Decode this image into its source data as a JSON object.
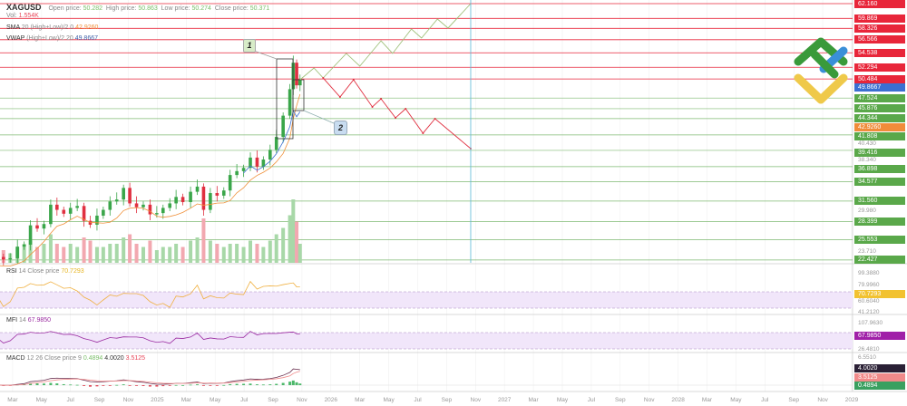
{
  "header": {
    "symbol": "XAGUSD",
    "open_label": "Open price:",
    "open": "50.282",
    "high_label": "High price:",
    "high": "50.863",
    "low_label": "Low price:",
    "low": "50.274",
    "close_label": "Close price:",
    "close": "50.371",
    "vol_label": "Vol:",
    "vol": "1.554K"
  },
  "indicators": {
    "sma": {
      "name": "SMA",
      "params": "20 (High+Low)/2 0",
      "value": "42.9260",
      "color": "#f0903a"
    },
    "vwap": {
      "name": "VWAP",
      "params": "(High+Low)/2 20",
      "value": "49.8667",
      "color": "#3b6fd1"
    },
    "rsi": {
      "name": "RSI",
      "params": "14 Close price",
      "value": "70.7293",
      "color": "#f0b040",
      "levels": [
        70,
        30
      ]
    },
    "mfi": {
      "name": "MFI",
      "params": "14",
      "value": "67.9850",
      "color": "#9a2aa0",
      "levels": [
        80,
        20
      ]
    },
    "macd": {
      "name": "MACD",
      "params": "12 26 Close price 9",
      "hist": "0.4894",
      "macd": "4.0020",
      "signal": "3.5125"
    }
  },
  "annotations": [
    {
      "label": "1"
    },
    {
      "label": "2"
    }
  ],
  "colors": {
    "resistance": "#e8263a",
    "support": "#5fa84f",
    "bull": "#3aa64a",
    "bear": "#e03040",
    "forecast_up": "#9fc07a",
    "forecast_down": "#e03040",
    "vline": "#5bb8d8"
  },
  "chart_data": {
    "type": "candlestick",
    "title": "",
    "x_ticks": [
      {
        "date": "2024-03-01",
        "label": "Mar"
      },
      {
        "date": "2024-05-01",
        "label": "May"
      },
      {
        "date": "2024-07-01",
        "label": "Jul"
      },
      {
        "date": "2024-09-01",
        "label": "Sep"
      },
      {
        "date": "2024-11-01",
        "label": "Nov"
      },
      {
        "date": "2025-01-01",
        "label": "2025"
      },
      {
        "date": "2025-03-01",
        "label": "Mar"
      },
      {
        "date": "2025-05-01",
        "label": "May"
      },
      {
        "date": "2025-07-01",
        "label": "Jul"
      },
      {
        "date": "2025-09-01",
        "label": "Sep"
      },
      {
        "date": "2025-11-01",
        "label": "Nov"
      },
      {
        "date": "2026-01-01",
        "label": "2026"
      },
      {
        "date": "2026-03-01",
        "label": "Mar"
      },
      {
        "date": "2026-05-01",
        "label": "May"
      },
      {
        "date": "2026-07-01",
        "label": "Jul"
      },
      {
        "date": "2026-09-01",
        "label": "Sep"
      },
      {
        "date": "2026-11-01",
        "label": "Nov"
      },
      {
        "date": "2027-01-01",
        "label": "2027"
      },
      {
        "date": "2027-03-01",
        "label": "Mar"
      },
      {
        "date": "2027-05-01",
        "label": "May"
      },
      {
        "date": "2027-07-01",
        "label": "Jul"
      },
      {
        "date": "2027-09-01",
        "label": "Sep"
      },
      {
        "date": "2027-11-01",
        "label": "Nov"
      },
      {
        "date": "2028-01-01",
        "label": "2028"
      },
      {
        "date": "2028-03-01",
        "label": "Mar"
      },
      {
        "date": "2028-05-01",
        "label": "May"
      },
      {
        "date": "2028-07-01",
        "label": "Jul"
      },
      {
        "date": "2028-09-01",
        "label": "Sep"
      },
      {
        "date": "2028-11-01",
        "label": "Nov"
      },
      {
        "date": "2029-01-01",
        "label": "2029"
      }
    ],
    "resistance_levels": [
      "62.160",
      "59.869",
      "58.326",
      "56.566",
      "54.538",
      "52.294",
      "50.484"
    ],
    "support_levels": [
      "47.524",
      "45.876",
      "44.344",
      "41.808",
      "39.416",
      "36.898",
      "34.577",
      "31.560",
      "28.399",
      "25.553",
      "22.427"
    ],
    "price_ticks": [
      "40.430",
      "38.340",
      "29.980",
      "23.710"
    ],
    "rsi_ticks": [
      "99.3880",
      "79.9960",
      "60.6040",
      "41.2120"
    ],
    "mfi_ticks": [
      "107.9630",
      "26.4810"
    ],
    "macd_ticks": [
      "6.5510"
    ],
    "closes": [
      [
        "2024-01-01",
        22.8
      ],
      [
        "2024-01-15",
        22.6
      ],
      [
        "2024-01-29",
        22.9
      ],
      [
        "2024-02-12",
        22.5
      ],
      [
        "2024-02-26",
        22.7
      ],
      [
        "2024-03-11",
        24.5
      ],
      [
        "2024-03-25",
        24.8
      ],
      [
        "2024-04-08",
        27.8
      ],
      [
        "2024-04-22",
        27.3
      ],
      [
        "2024-05-06",
        28.0
      ],
      [
        "2024-05-20",
        31.0
      ],
      [
        "2024-06-03",
        30.2
      ],
      [
        "2024-06-17",
        29.6
      ],
      [
        "2024-07-01",
        30.5
      ],
      [
        "2024-07-15",
        30.8
      ],
      [
        "2024-07-29",
        28.5
      ],
      [
        "2024-08-12",
        27.9
      ],
      [
        "2024-08-26",
        29.3
      ],
      [
        "2024-09-09",
        30.2
      ],
      [
        "2024-09-23",
        31.5
      ],
      [
        "2024-10-07",
        31.8
      ],
      [
        "2024-10-21",
        33.6
      ],
      [
        "2024-11-04",
        31.2
      ],
      [
        "2024-11-18",
        30.6
      ],
      [
        "2024-12-02",
        31.0
      ],
      [
        "2024-12-16",
        29.5
      ],
      [
        "2024-12-30",
        29.7
      ],
      [
        "2025-01-13",
        30.5
      ],
      [
        "2025-01-27",
        31.2
      ],
      [
        "2025-02-10",
        32.2
      ],
      [
        "2025-02-24",
        31.4
      ],
      [
        "2025-03-10",
        33.0
      ],
      [
        "2025-03-24",
        33.8
      ],
      [
        "2025-04-07",
        30.2
      ],
      [
        "2025-04-21",
        32.8
      ],
      [
        "2025-05-05",
        32.4
      ],
      [
        "2025-05-19",
        33.2
      ],
      [
        "2025-06-02",
        35.6
      ],
      [
        "2025-06-16",
        36.2
      ],
      [
        "2025-06-30",
        36.7
      ],
      [
        "2025-07-14",
        38.3
      ],
      [
        "2025-07-28",
        36.9
      ],
      [
        "2025-08-11",
        38.0
      ],
      [
        "2025-08-25",
        39.5
      ],
      [
        "2025-09-08",
        41.5
      ],
      [
        "2025-09-22",
        44.8
      ],
      [
        "2025-10-06",
        48.9
      ],
      [
        "2025-10-13",
        53.0
      ],
      [
        "2025-10-20",
        49.5
      ],
      [
        "2025-10-27",
        50.37
      ]
    ],
    "volume": [
      3,
      4,
      3,
      4,
      3,
      5,
      6,
      7,
      5,
      6,
      9,
      6,
      5,
      6,
      5,
      8,
      7,
      5,
      5,
      6,
      6,
      8,
      9,
      6,
      5,
      7,
      4,
      5,
      5,
      6,
      5,
      7,
      8,
      14,
      7,
      6,
      5,
      6,
      6,
      5,
      7,
      6,
      5,
      7,
      9,
      11,
      15,
      20,
      13,
      6
    ],
    "forecast_up": [
      [
        "2025-10-27",
        50.36
      ],
      [
        "2025-11-26",
        52.19
      ],
      [
        "2025-12-15",
        50.64
      ],
      [
        "2026-02-03",
        54.44
      ],
      [
        "2026-03-01",
        52.47
      ],
      [
        "2026-04-15",
        56.4
      ],
      [
        "2026-05-09",
        54.44
      ],
      [
        "2026-06-18",
        58.23
      ],
      [
        "2026-07-09",
        56.82
      ],
      [
        "2026-08-12",
        59.77
      ],
      [
        "2026-09-04",
        58.37
      ],
      [
        "2026-10-21",
        62.16
      ]
    ],
    "forecast_down": [
      [
        "2025-12-15",
        50.64
      ],
      [
        "2026-01-20",
        47.69
      ],
      [
        "2026-02-18",
        50.36
      ],
      [
        "2026-03-27",
        46.15
      ],
      [
        "2026-04-15",
        47.41
      ],
      [
        "2026-05-15",
        44.46
      ],
      [
        "2026-06-06",
        45.87
      ],
      [
        "2026-07-12",
        42.08
      ],
      [
        "2026-08-07",
        44.32
      ],
      [
        "2026-10-21",
        39.69
      ]
    ]
  }
}
